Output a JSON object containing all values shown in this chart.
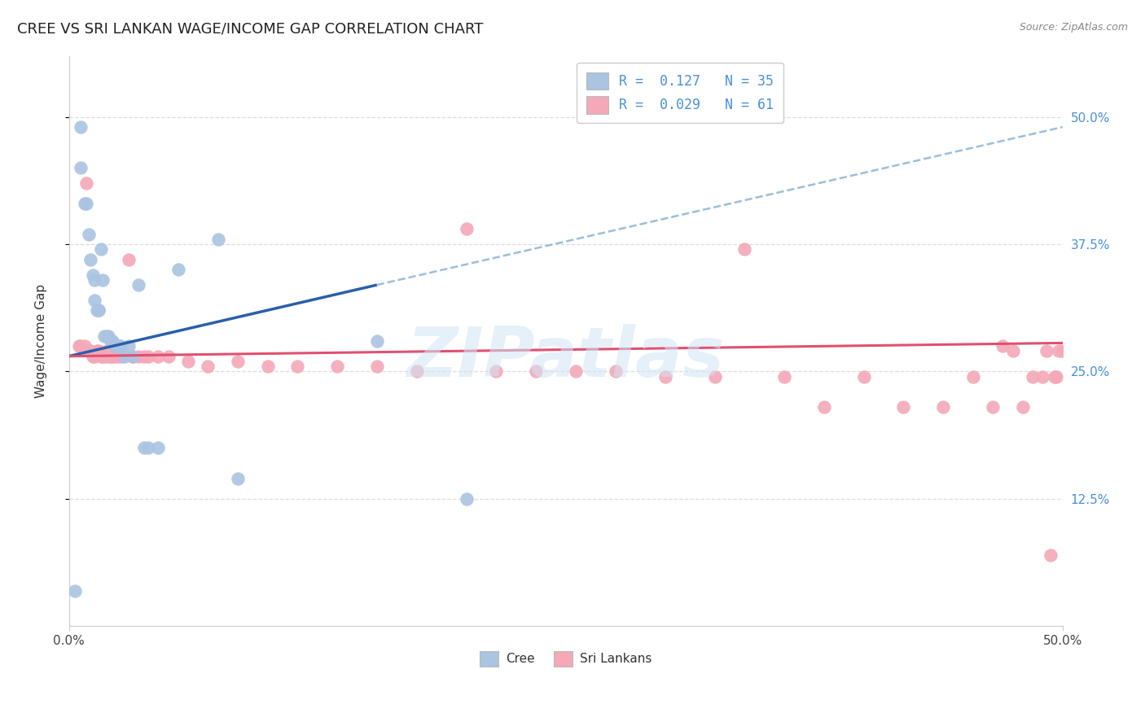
{
  "title": "CREE VS SRI LANKAN WAGE/INCOME GAP CORRELATION CHART",
  "source": "Source: ZipAtlas.com",
  "ylabel": "Wage/Income Gap",
  "watermark": "ZIPatlas",
  "ytick_labels": [
    "50.0%",
    "37.5%",
    "25.0%",
    "12.5%"
  ],
  "ytick_values": [
    0.5,
    0.375,
    0.25,
    0.125
  ],
  "xlim": [
    0.0,
    0.5
  ],
  "ylim": [
    0.0,
    0.56
  ],
  "cree_color": "#aac4e2",
  "srilanka_color": "#f4a8b8",
  "cree_line_color": "#2a5faa",
  "srilanka_line_color": "#e05070",
  "dashed_line_color": "#90b8d8",
  "legend_color": "#4a90d9",
  "grid_color": "#dddddd",
  "bg_color": "#ffffff",
  "right_axis_color": "#4a90d9",
  "title_fontsize": 13,
  "label_fontsize": 11,
  "tick_fontsize": 11,
  "cree_x": [
    0.003,
    0.006,
    0.006,
    0.008,
    0.009,
    0.01,
    0.011,
    0.012,
    0.013,
    0.013,
    0.014,
    0.015,
    0.015,
    0.016,
    0.017,
    0.018,
    0.019,
    0.02,
    0.021,
    0.022,
    0.023,
    0.025,
    0.026,
    0.028,
    0.03,
    0.032,
    0.035,
    0.038,
    0.04,
    0.045,
    0.055,
    0.075,
    0.085,
    0.155,
    0.2
  ],
  "cree_y": [
    0.035,
    0.49,
    0.45,
    0.415,
    0.415,
    0.385,
    0.36,
    0.345,
    0.34,
    0.32,
    0.31,
    0.31,
    0.31,
    0.37,
    0.34,
    0.285,
    0.285,
    0.285,
    0.28,
    0.28,
    0.275,
    0.275,
    0.275,
    0.265,
    0.275,
    0.265,
    0.335,
    0.175,
    0.175,
    0.175,
    0.35,
    0.38,
    0.145,
    0.28,
    0.125
  ],
  "sri_x": [
    0.005,
    0.006,
    0.008,
    0.009,
    0.01,
    0.011,
    0.012,
    0.013,
    0.014,
    0.015,
    0.016,
    0.017,
    0.018,
    0.019,
    0.02,
    0.021,
    0.022,
    0.023,
    0.025,
    0.027,
    0.03,
    0.032,
    0.035,
    0.038,
    0.04,
    0.045,
    0.05,
    0.06,
    0.07,
    0.085,
    0.1,
    0.115,
    0.135,
    0.155,
    0.175,
    0.2,
    0.215,
    0.235,
    0.255,
    0.275,
    0.3,
    0.325,
    0.34,
    0.36,
    0.38,
    0.4,
    0.42,
    0.44,
    0.455,
    0.465,
    0.47,
    0.475,
    0.48,
    0.485,
    0.49,
    0.492,
    0.494,
    0.496,
    0.497,
    0.498,
    0.5
  ],
  "sri_y": [
    0.275,
    0.275,
    0.275,
    0.435,
    0.27,
    0.27,
    0.265,
    0.265,
    0.27,
    0.27,
    0.265,
    0.265,
    0.265,
    0.27,
    0.265,
    0.265,
    0.265,
    0.265,
    0.265,
    0.265,
    0.36,
    0.265,
    0.265,
    0.265,
    0.265,
    0.265,
    0.265,
    0.26,
    0.255,
    0.26,
    0.255,
    0.255,
    0.255,
    0.255,
    0.25,
    0.39,
    0.25,
    0.25,
    0.25,
    0.25,
    0.245,
    0.245,
    0.37,
    0.245,
    0.215,
    0.245,
    0.215,
    0.215,
    0.245,
    0.215,
    0.275,
    0.27,
    0.215,
    0.245,
    0.245,
    0.27,
    0.07,
    0.245,
    0.245,
    0.27,
    0.27
  ],
  "cree_line_x0": 0.0,
  "cree_line_y0": 0.265,
  "cree_line_x1": 0.155,
  "cree_line_y1": 0.335,
  "sri_line_x0": 0.0,
  "sri_line_y0": 0.265,
  "sri_line_x1": 0.5,
  "sri_line_y1": 0.278,
  "dash_line_x0": 0.155,
  "dash_line_y0": 0.335,
  "dash_line_x1": 0.5,
  "dash_line_y1": 0.49
}
